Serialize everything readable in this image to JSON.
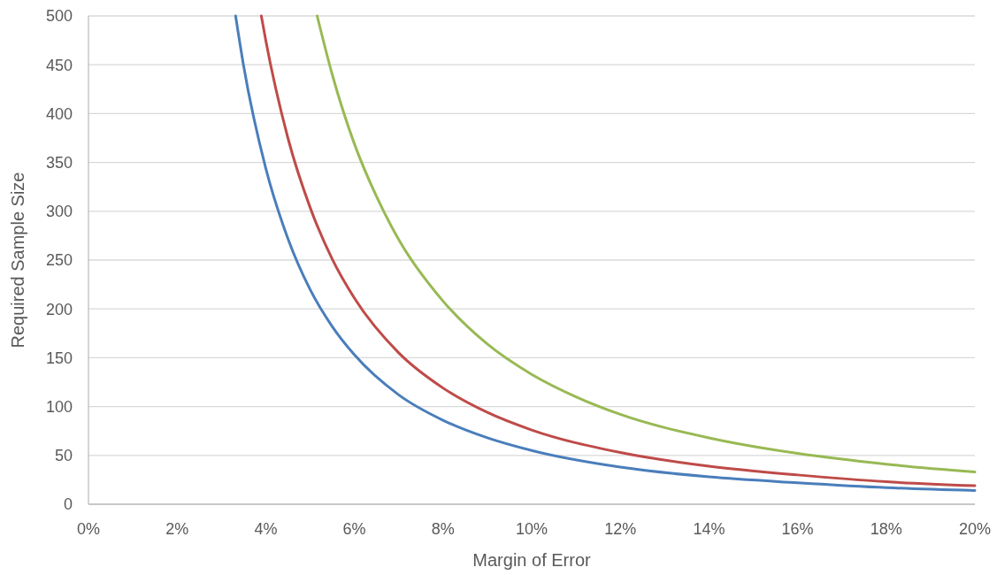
{
  "chart_data": {
    "type": "line",
    "xlabel": "Margin of Error",
    "ylabel": "Required Sample Size",
    "xlim": [
      0,
      20
    ],
    "xticks": [
      {
        "value": 0,
        "label": "0%"
      },
      {
        "value": 2,
        "label": "2%"
      },
      {
        "value": 4,
        "label": "4%"
      },
      {
        "value": 6,
        "label": "6%"
      },
      {
        "value": 8,
        "label": "8%"
      },
      {
        "value": 10,
        "label": "10%"
      },
      {
        "value": 12,
        "label": "12%"
      },
      {
        "value": 14,
        "label": "14%"
      },
      {
        "value": 16,
        "label": "16%"
      },
      {
        "value": 18,
        "label": "18%"
      },
      {
        "value": 20,
        "label": "20%"
      }
    ],
    "ylim": [
      0,
      500
    ],
    "yticks": [
      0,
      50,
      100,
      150,
      200,
      250,
      300,
      350,
      400,
      450,
      500
    ],
    "grid": "y",
    "marker": "none",
    "line_style": "solid",
    "series": [
      {
        "color": "#4a7ebb",
        "x": [
          3.32,
          3.5,
          4,
          4.5,
          5,
          5.5,
          6,
          7,
          8,
          9,
          10,
          12,
          14,
          16,
          18,
          20
        ],
        "values": [
          500,
          449,
          344,
          272,
          220,
          182,
          153,
          112,
          86,
          68,
          55,
          38,
          28,
          22,
          17,
          14
        ]
      },
      {
        "color": "#be4b48",
        "x": [
          3.9,
          4,
          4.5,
          5,
          5.5,
          6,
          7,
          8,
          9,
          10,
          12,
          14,
          16,
          18,
          20
        ],
        "values": [
          500,
          475,
          375,
          304,
          251,
          211,
          155,
          119,
          94,
          76,
          53,
          39,
          30,
          23,
          19
        ]
      },
      {
        "color": "#98b954",
        "x": [
          5.16,
          5.5,
          6,
          6.5,
          7,
          8,
          9,
          10,
          11,
          12,
          14,
          16,
          18,
          20
        ],
        "values": [
          500,
          440,
          369,
          315,
          271,
          208,
          164,
          133,
          110,
          92,
          68,
          52,
          41,
          33
        ]
      }
    ]
  }
}
